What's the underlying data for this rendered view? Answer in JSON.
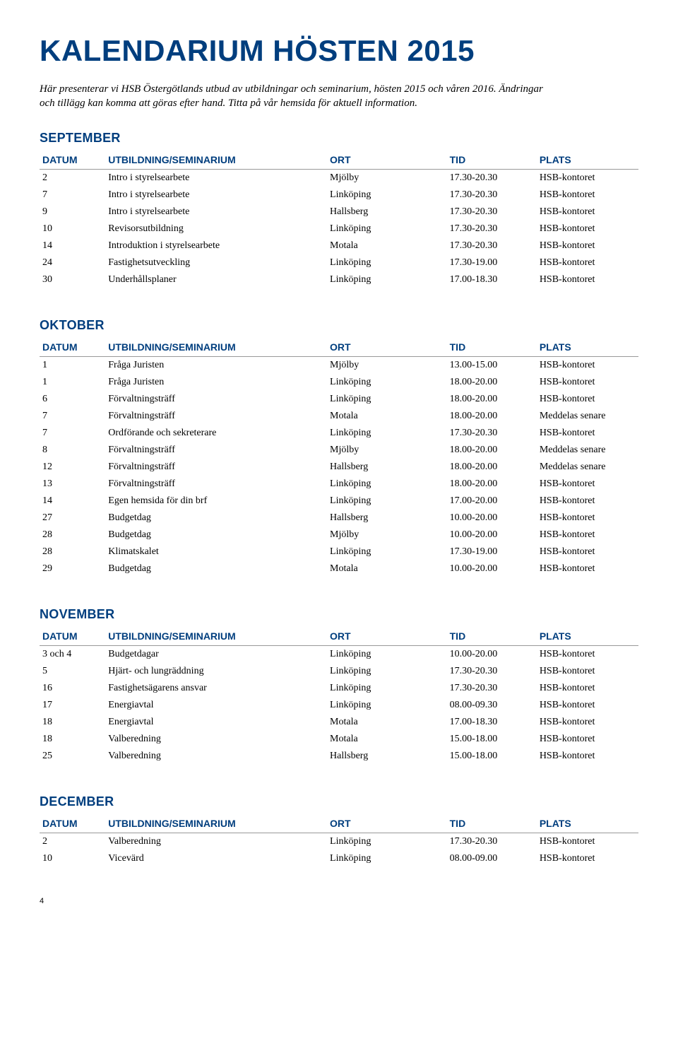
{
  "title": "KALENDARIUM HÖSTEN 2015",
  "intro": "Här presenterar vi HSB Östergötlands utbud av utbildningar och seminarium, hösten 2015 och våren 2016. Ändringar och tillägg kan komma att göras efter hand. Titta på vår hemsida för aktuell information.",
  "columns": {
    "datum": "DATUM",
    "utbildning": "UTBILDNING/SEMINARIUM",
    "ort": "ORT",
    "tid": "TID",
    "plats": "PLATS"
  },
  "colors": {
    "brand": "#003e7e",
    "text": "#000000",
    "rule": "#999999",
    "background": "#ffffff"
  },
  "typography": {
    "title_fontsize": 42,
    "month_fontsize": 18,
    "header_fontsize": 14,
    "body_fontsize": 14,
    "intro_fontsize": 15
  },
  "sections": [
    {
      "month": "SEPTEMBER",
      "rows": [
        {
          "datum": "2",
          "utb": "Intro i styrelsearbete",
          "ort": "Mjölby",
          "tid": "17.30-20.30",
          "plats": "HSB-kontoret"
        },
        {
          "datum": "7",
          "utb": "Intro i styrelsearbete",
          "ort": "Linköping",
          "tid": "17.30-20.30",
          "plats": "HSB-kontoret"
        },
        {
          "datum": "9",
          "utb": "Intro i styrelsearbete",
          "ort": "Hallsberg",
          "tid": "17.30-20.30",
          "plats": "HSB-kontoret"
        },
        {
          "datum": "10",
          "utb": "Revisorsutbildning",
          "ort": "Linköping",
          "tid": "17.30-20.30",
          "plats": "HSB-kontoret"
        },
        {
          "datum": "14",
          "utb": "Introduktion i styrelsearbete",
          "ort": "Motala",
          "tid": "17.30-20.30",
          "plats": "HSB-kontoret"
        },
        {
          "datum": "24",
          "utb": "Fastighetsutveckling",
          "ort": "Linköping",
          "tid": "17.30-19.00",
          "plats": "HSB-kontoret"
        },
        {
          "datum": "30",
          "utb": "Underhållsplaner",
          "ort": "Linköping",
          "tid": "17.00-18.30",
          "plats": "HSB-kontoret"
        }
      ]
    },
    {
      "month": "OKTOBER",
      "rows": [
        {
          "datum": "1",
          "utb": "Fråga Juristen",
          "ort": "Mjölby",
          "tid": "13.00-15.00",
          "plats": "HSB-kontoret"
        },
        {
          "datum": "1",
          "utb": "Fråga Juristen",
          "ort": "Linköping",
          "tid": "18.00-20.00",
          "plats": "HSB-kontoret"
        },
        {
          "datum": "6",
          "utb": "Förvaltningsträff",
          "ort": "Linköping",
          "tid": "18.00-20.00",
          "plats": "HSB-kontoret"
        },
        {
          "datum": "7",
          "utb": "Förvaltningsträff",
          "ort": "Motala",
          "tid": "18.00-20.00",
          "plats": "Meddelas senare"
        },
        {
          "datum": "7",
          "utb": "Ordförande och sekreterare",
          "ort": "Linköping",
          "tid": "17.30-20.30",
          "plats": "HSB-kontoret"
        },
        {
          "datum": "8",
          "utb": "Förvaltningsträff",
          "ort": "Mjölby",
          "tid": "18.00-20.00",
          "plats": "Meddelas senare"
        },
        {
          "datum": "12",
          "utb": "Förvaltningsträff",
          "ort": "Hallsberg",
          "tid": "18.00-20.00",
          "plats": "Meddelas senare"
        },
        {
          "datum": "13",
          "utb": "Förvaltningsträff",
          "ort": "Linköping",
          "tid": "18.00-20.00",
          "plats": "HSB-kontoret"
        },
        {
          "datum": "14",
          "utb": "Egen hemsida för din brf",
          "ort": "Linköping",
          "tid": "17.00-20.00",
          "plats": "HSB-kontoret"
        },
        {
          "datum": "27",
          "utb": "Budgetdag",
          "ort": "Hallsberg",
          "tid": "10.00-20.00",
          "plats": "HSB-kontoret"
        },
        {
          "datum": "28",
          "utb": "Budgetdag",
          "ort": "Mjölby",
          "tid": "10.00-20.00",
          "plats": "HSB-kontoret"
        },
        {
          "datum": "28",
          "utb": "Klimatskalet",
          "ort": "Linköping",
          "tid": "17.30-19.00",
          "plats": "HSB-kontoret"
        },
        {
          "datum": "29",
          "utb": "Budgetdag",
          "ort": "Motala",
          "tid": "10.00-20.00",
          "plats": "HSB-kontoret"
        }
      ]
    },
    {
      "month": "NOVEMBER",
      "rows": [
        {
          "datum": "3 och 4",
          "utb": "Budgetdagar",
          "ort": "Linköping",
          "tid": "10.00-20.00",
          "plats": "HSB-kontoret"
        },
        {
          "datum": "5",
          "utb": "Hjärt- och lungräddning",
          "ort": "Linköping",
          "tid": "17.30-20.30",
          "plats": "HSB-kontoret"
        },
        {
          "datum": "16",
          "utb": "Fastighetsägarens ansvar",
          "ort": "Linköping",
          "tid": "17.30-20.30",
          "plats": "HSB-kontoret"
        },
        {
          "datum": "17",
          "utb": "Energiavtal",
          "ort": "Linköping",
          "tid": "08.00-09.30",
          "plats": "HSB-kontoret"
        },
        {
          "datum": "18",
          "utb": "Energiavtal",
          "ort": "Motala",
          "tid": "17.00-18.30",
          "plats": "HSB-kontoret"
        },
        {
          "datum": "18",
          "utb": "Valberedning",
          "ort": "Motala",
          "tid": "15.00-18.00",
          "plats": "HSB-kontoret"
        },
        {
          "datum": "25",
          "utb": "Valberedning",
          "ort": "Hallsberg",
          "tid": "15.00-18.00",
          "plats": "HSB-kontoret"
        }
      ]
    },
    {
      "month": "DECEMBER",
      "rows": [
        {
          "datum": "2",
          "utb": "Valberedning",
          "ort": "Linköping",
          "tid": "17.30-20.30",
          "plats": "HSB-kontoret"
        },
        {
          "datum": "10",
          "utb": "Vicevärd",
          "ort": "Linköping",
          "tid": "08.00-09.00",
          "plats": "HSB-kontoret"
        }
      ]
    }
  ],
  "page_number": "4"
}
